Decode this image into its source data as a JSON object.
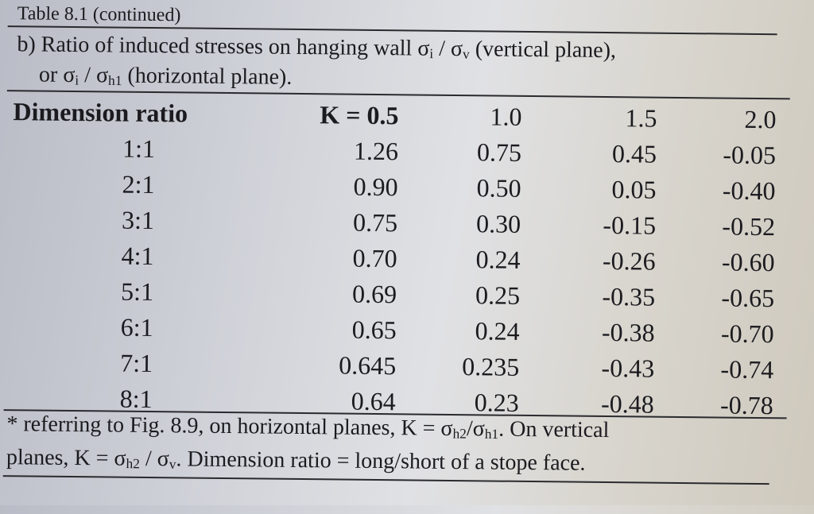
{
  "caption": "Table 8.1 (continued)",
  "subtitle": {
    "line1_prefix": "b) Ratio of induced stresses on hanging wall σ",
    "line1_sub_i": "i",
    "line1_mid": " / σ",
    "line1_sub_v": "v",
    "line1_suffix": " (vertical plane),",
    "line2_prefix": "or σ",
    "line2_sub_i": "i",
    "line2_mid": " / σ",
    "line2_sub_h1": "h1",
    "line2_suffix": " (horizontal plane)."
  },
  "table": {
    "header": {
      "dimension_ratio": "Dimension ratio",
      "k_values": [
        "K = 0.5",
        "1.0",
        "1.5",
        "2.0"
      ]
    },
    "rows": [
      {
        "ratio": "1:1",
        "values": [
          "1.26",
          "0.75",
          "0.45",
          "-0.05"
        ]
      },
      {
        "ratio": "2:1",
        "values": [
          "0.90",
          "0.50",
          "0.05",
          "-0.40"
        ]
      },
      {
        "ratio": "3:1",
        "values": [
          "0.75",
          "0.30",
          "-0.15",
          "-0.52"
        ]
      },
      {
        "ratio": "4:1",
        "values": [
          "0.70",
          "0.24",
          "-0.26",
          "-0.60"
        ]
      },
      {
        "ratio": "5:1",
        "values": [
          "0.69",
          "0.25",
          "-0.35",
          "-0.65"
        ]
      },
      {
        "ratio": "6:1",
        "values": [
          "0.65",
          "0.24",
          "-0.38",
          "-0.70"
        ]
      },
      {
        "ratio": "7:1",
        "values": [
          "0.645",
          "0.235",
          "-0.43",
          "-0.74"
        ]
      },
      {
        "ratio": "8:1",
        "values": [
          "0.64",
          "0.23",
          "-0.48",
          "-0.78"
        ]
      }
    ]
  },
  "footnote": {
    "line1_prefix": "* referring to Fig. 8.9, on horizontal planes, K = σ",
    "line1_sub_h2": "h2",
    "line1_mid": "/σ",
    "line1_sub_h1": "h1",
    "line1_suffix": ". On vertical",
    "line2_prefix": "planes, K = σ",
    "line2_sub_h2": "h2",
    "line2_mid": " / σ",
    "line2_sub_v": "v",
    "line2_suffix": ". Dimension ratio = long/short of a stope face."
  }
}
